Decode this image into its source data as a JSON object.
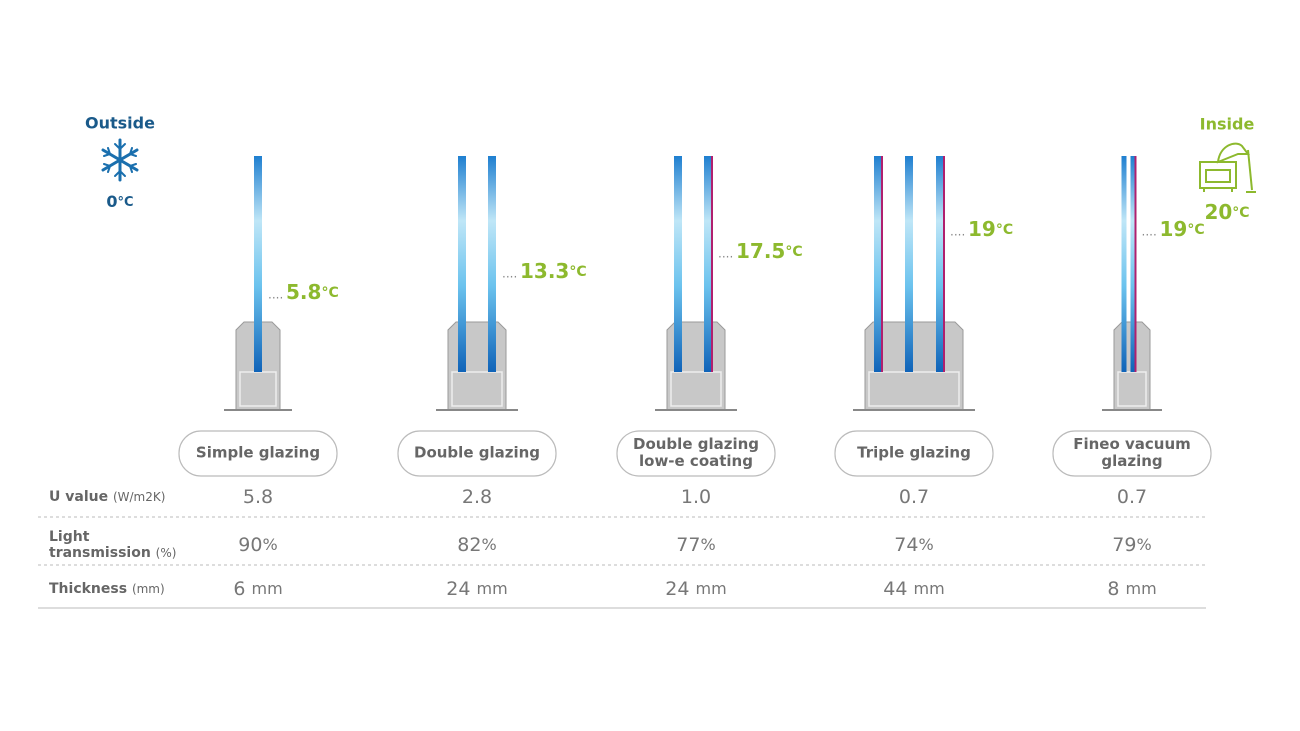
{
  "outside": {
    "label": "Outside",
    "temperature": "0",
    "unit": "°C"
  },
  "inside": {
    "label": "Inside",
    "temperature": "20",
    "unit": "°C"
  },
  "glazings": [
    {
      "name": [
        "Simple glazing"
      ],
      "surface_temperature": {
        "value": "5.8",
        "unit": "°C"
      }
    },
    {
      "name": [
        "Double glazing"
      ],
      "surface_temperature": {
        "value": "13.3",
        "unit": "°C"
      }
    },
    {
      "name": [
        "Double glazing",
        "low-e coating"
      ],
      "surface_temperature": {
        "value": "17.5",
        "unit": "°C"
      }
    },
    {
      "name": [
        "Triple glazing"
      ],
      "surface_temperature": {
        "value": "19",
        "unit": "°C"
      }
    },
    {
      "name": [
        "Fineo vacuum",
        "glazing"
      ],
      "surface_temperature": {
        "value": "19",
        "unit": "°C"
      }
    }
  ],
  "table": {
    "rows": [
      {
        "label": [
          "U value"
        ],
        "unit": "(W/m2K)",
        "cells": [
          {
            "value": "5.8"
          },
          {
            "value": "2.8"
          },
          {
            "value": "1.0"
          },
          {
            "value": "0.7"
          },
          {
            "value": "0.7"
          }
        ]
      },
      {
        "label": [
          "Light",
          "transmission"
        ],
        "unit": "(%)",
        "cells": [
          {
            "value": "90",
            "unit": "%"
          },
          {
            "value": "82",
            "unit": "%"
          },
          {
            "value": "77",
            "unit": "%"
          },
          {
            "value": "74",
            "unit": "%"
          },
          {
            "value": "79",
            "unit": "%"
          }
        ]
      },
      {
        "label": [
          "Thickness"
        ],
        "unit": "(mm)",
        "cells": [
          {
            "value": "6",
            "unit": "mm"
          },
          {
            "value": "24",
            "unit": "mm"
          },
          {
            "value": "24",
            "unit": "mm"
          },
          {
            "value": "44",
            "unit": "mm"
          },
          {
            "value": "8",
            "unit": "mm"
          }
        ]
      }
    ]
  }
}
